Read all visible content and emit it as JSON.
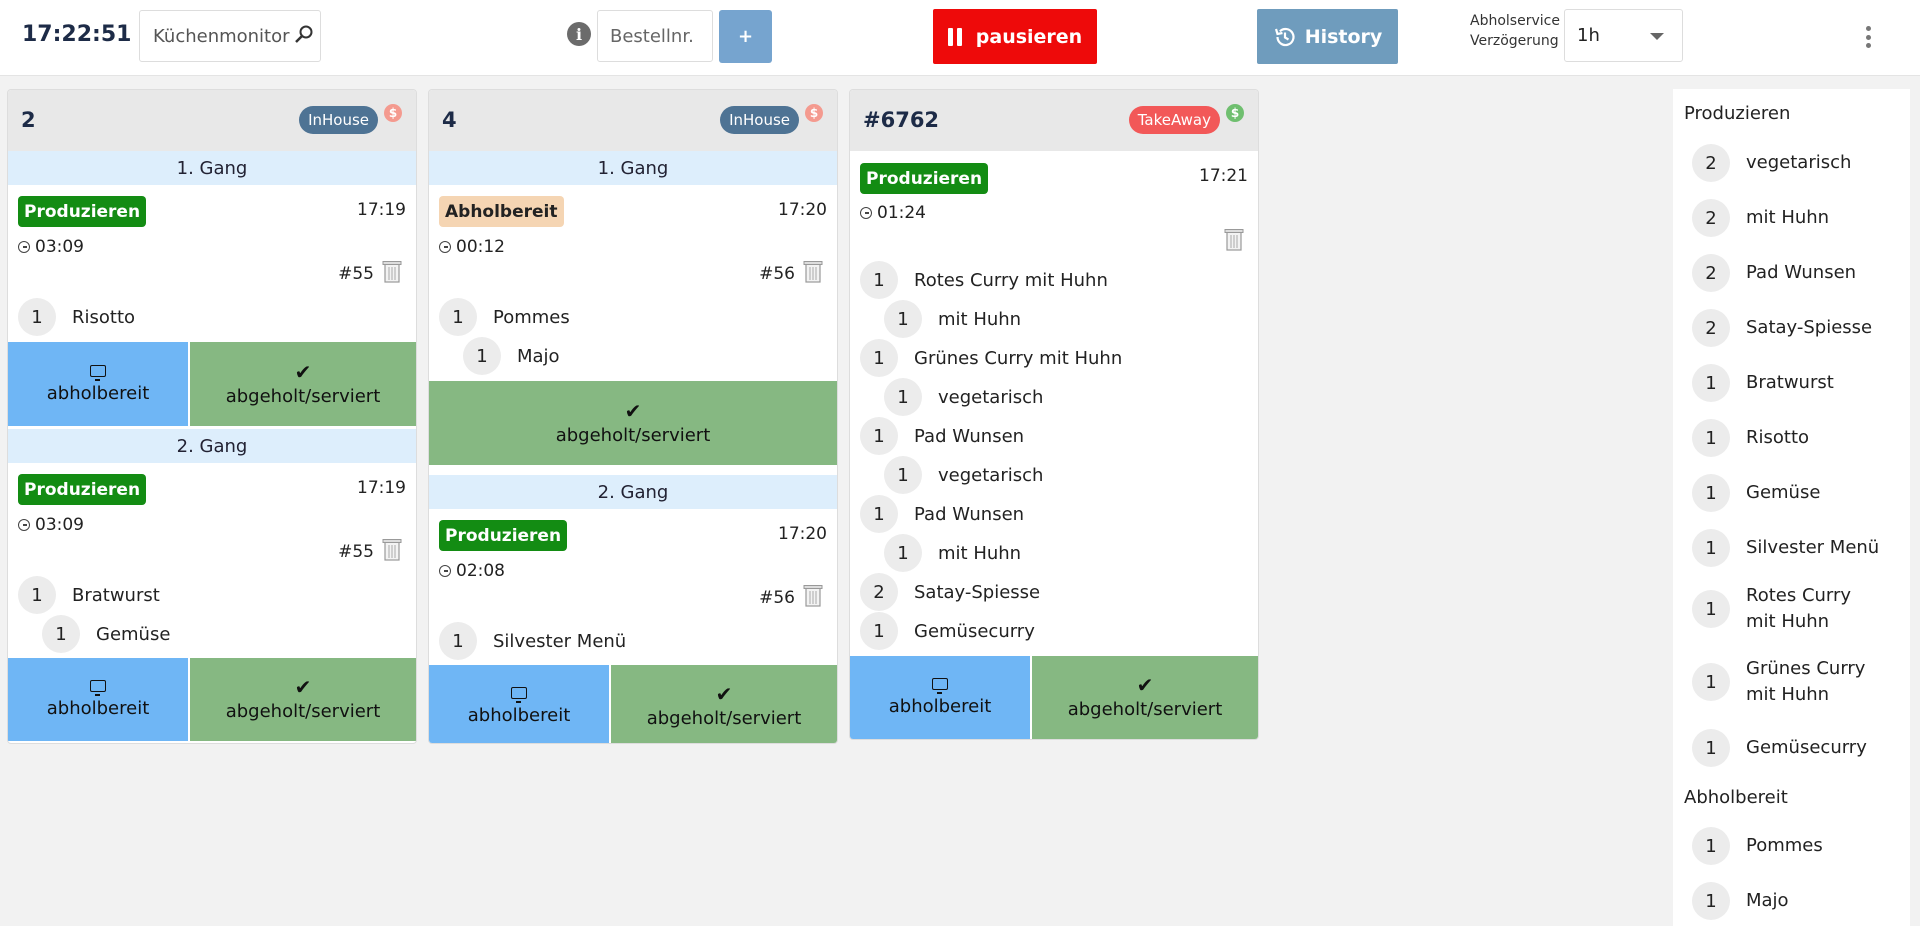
{
  "header": {
    "clock": "17:22:51",
    "monitor_label": "Küchenmonitor",
    "order_placeholder": "Bestellnr.",
    "plus_label": "+",
    "pause_label": "pausieren",
    "history_label": "History",
    "delay_label_line1": "Abholservice",
    "delay_label_line2": "Verzögerung",
    "delay_value": "1h",
    "icons": {
      "search": "magnifier-icon",
      "info": "info-icon",
      "pause": "pause-icon",
      "history": "history-icon",
      "menu": "kebab-menu-icon"
    }
  },
  "orders": [
    {
      "title": "2",
      "badge": "InHouse",
      "pay_symbol": "$",
      "courses": [
        {
          "label": "1. Gang",
          "status": "Produzieren",
          "time": "17:19",
          "timer": "03:09",
          "order_no": "#55",
          "items": [
            {
              "qty": "1",
              "name": "Risotto"
            }
          ]
        },
        {
          "label": "2. Gang",
          "status": "Produzieren",
          "time": "17:19",
          "timer": "03:09",
          "order_no": "#55",
          "items": [
            {
              "qty": "1",
              "name": "Bratwurst"
            },
            {
              "qty": "1",
              "name": "Gemüse"
            }
          ]
        }
      ]
    },
    {
      "title": "4",
      "badge": "InHouse",
      "pay_symbol": "$",
      "courses": [
        {
          "label": "1. Gang",
          "status": "Abholbereit",
          "time": "17:20",
          "timer": "00:12",
          "order_no": "#56",
          "items": [
            {
              "qty": "1",
              "name": "Pommes"
            },
            {
              "qty": "1",
              "name": "Majo"
            }
          ]
        },
        {
          "label": "2. Gang",
          "status": "Produzieren",
          "time": "17:20",
          "timer": "02:08",
          "order_no": "#56",
          "items": [
            {
              "qty": "1",
              "name": "Silvester Menü"
            }
          ]
        }
      ]
    },
    {
      "title": "#6762",
      "badge": "TakeAway",
      "pay_symbol": "$",
      "status": "Produzieren",
      "time": "17:21",
      "timer": "01:24",
      "items": [
        {
          "qty": "1",
          "name": "Rotes Curry mit Huhn"
        },
        {
          "qty": "1",
          "name": "mit Huhn"
        },
        {
          "qty": "1",
          "name": "Grünes Curry mit Huhn"
        },
        {
          "qty": "1",
          "name": "vegetarisch"
        },
        {
          "qty": "1",
          "name": "Pad Wunsen"
        },
        {
          "qty": "1",
          "name": "vegetarisch"
        },
        {
          "qty": "1",
          "name": "Pad Wunsen"
        },
        {
          "qty": "1",
          "name": "mit Huhn"
        },
        {
          "qty": "2",
          "name": "Satay-Spiesse"
        },
        {
          "qty": "1",
          "name": "Gemüsecurry"
        }
      ]
    }
  ],
  "actions": {
    "ready": "abholbereit",
    "served": "abgeholt/serviert",
    "check": "✔"
  },
  "sidebar": {
    "produce_heading": "Produzieren",
    "produce_items": [
      {
        "qty": "2",
        "name": "vegetarisch"
      },
      {
        "qty": "2",
        "name": "mit Huhn"
      },
      {
        "qty": "2",
        "name": "Pad Wunsen"
      },
      {
        "qty": "2",
        "name": "Satay-Spiesse"
      },
      {
        "qty": "1",
        "name": "Bratwurst"
      },
      {
        "qty": "1",
        "name": "Risotto"
      },
      {
        "qty": "1",
        "name": "Gemüse"
      },
      {
        "qty": "1",
        "name": "Silvester Menü"
      },
      {
        "qty": "1",
        "name": "Rotes Curry mit Huhn"
      },
      {
        "qty": "1",
        "name": "Grünes Curry mit Huhn"
      },
      {
        "qty": "1",
        "name": "Gemüsecurry"
      }
    ],
    "ready_heading": "Abholbereit",
    "ready_items": [
      {
        "qty": "1",
        "name": "Pommes"
      },
      {
        "qty": "1",
        "name": "Majo"
      }
    ]
  },
  "colors": {
    "produce": "#138c13",
    "ready_status": "#f5d5b3",
    "pause": "#ee0a0a",
    "history": "#6f9cbd",
    "btn_ready": "#6fb6f5",
    "btn_served": "#86b882"
  }
}
